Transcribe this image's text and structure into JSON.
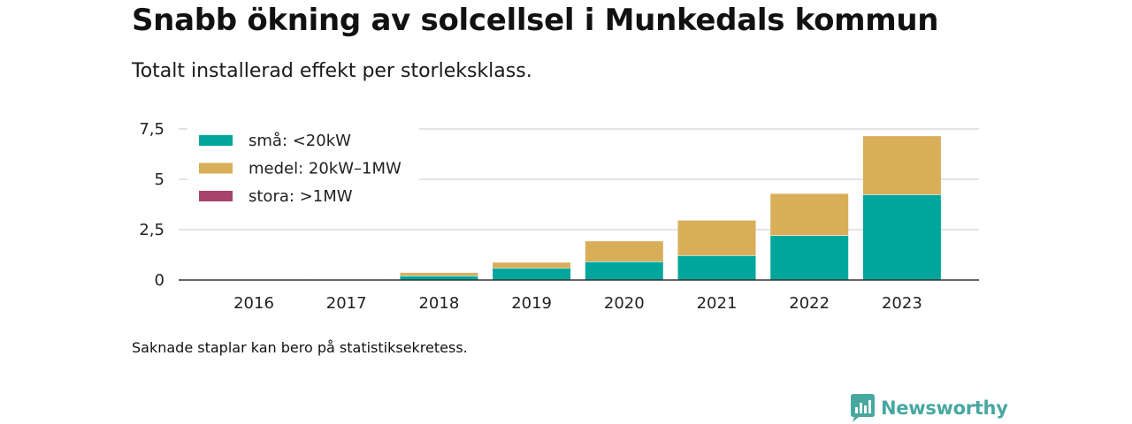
{
  "header": {
    "title": "Snabb ökning av solcellsel i Munkedals kommun",
    "subtitle": "Totalt installerad effekt per storleksklass."
  },
  "footnote": "Saknade staplar kan bero på statistiksekretess.",
  "brand": {
    "name": "Newsworthy",
    "icon": "newsworthy-logo-icon",
    "color": "#47a8a0"
  },
  "chart_data": {
    "type": "bar",
    "stacked": true,
    "categories": [
      "2016",
      "2017",
      "2018",
      "2019",
      "2020",
      "2021",
      "2022",
      "2023"
    ],
    "series": [
      {
        "name": "små: <20kW",
        "color": "#00a69c",
        "values": [
          0.02,
          0.05,
          0.22,
          0.6,
          0.92,
          1.22,
          2.22,
          4.25
        ]
      },
      {
        "name": "medel: 20kW–1MW",
        "color": "#d9ae58",
        "values": [
          0.0,
          0.02,
          0.16,
          0.29,
          1.03,
          1.76,
          2.09,
          2.92
        ]
      },
      {
        "name": "stora: >1MW",
        "color": "#a8436b",
        "values": [
          0,
          0,
          0,
          0,
          0,
          0,
          0,
          0
        ]
      }
    ],
    "ylim": [
      0,
      7.5
    ],
    "yticks": [
      0,
      2.5,
      5,
      7.5
    ],
    "ytick_labels": [
      "0",
      "2,5",
      "5",
      "7,5"
    ],
    "grid": true,
    "legend_position": "top-left"
  }
}
